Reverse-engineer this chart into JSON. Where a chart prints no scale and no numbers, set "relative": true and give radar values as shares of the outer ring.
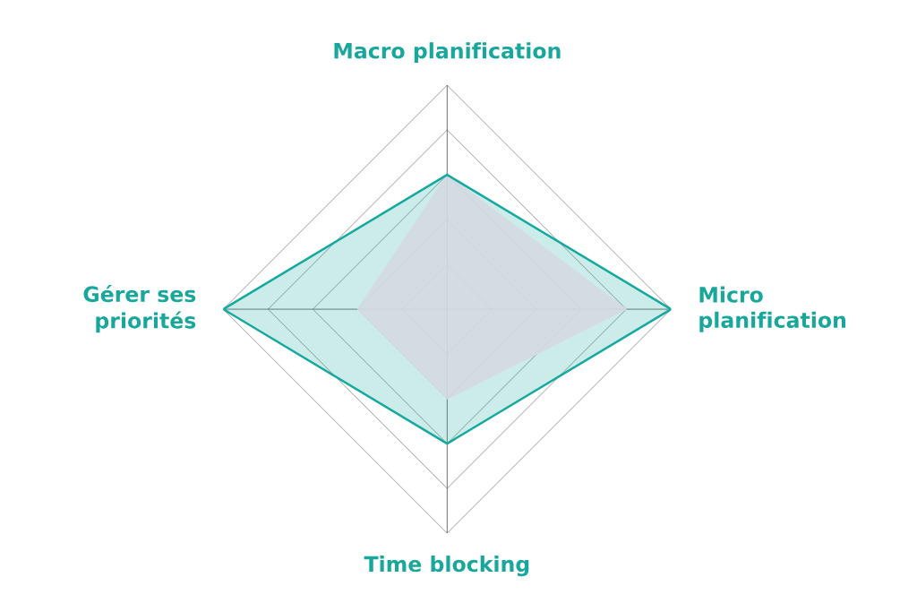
{
  "chart_data": {
    "type": "radar",
    "relative": true,
    "grid": true,
    "categories": [
      "Macro planification",
      "Micro\nplanification",
      "Time blocking",
      "Gérer ses\npriorités"
    ],
    "series": [
      {
        "color": "#15a99f",
        "values": [
          0.6,
          1.0,
          0.6,
          1.0
        ]
      },
      {
        "color": "#d5dae2",
        "values": [
          0.6,
          0.8,
          0.4,
          0.4
        ]
      }
    ]
  }
}
